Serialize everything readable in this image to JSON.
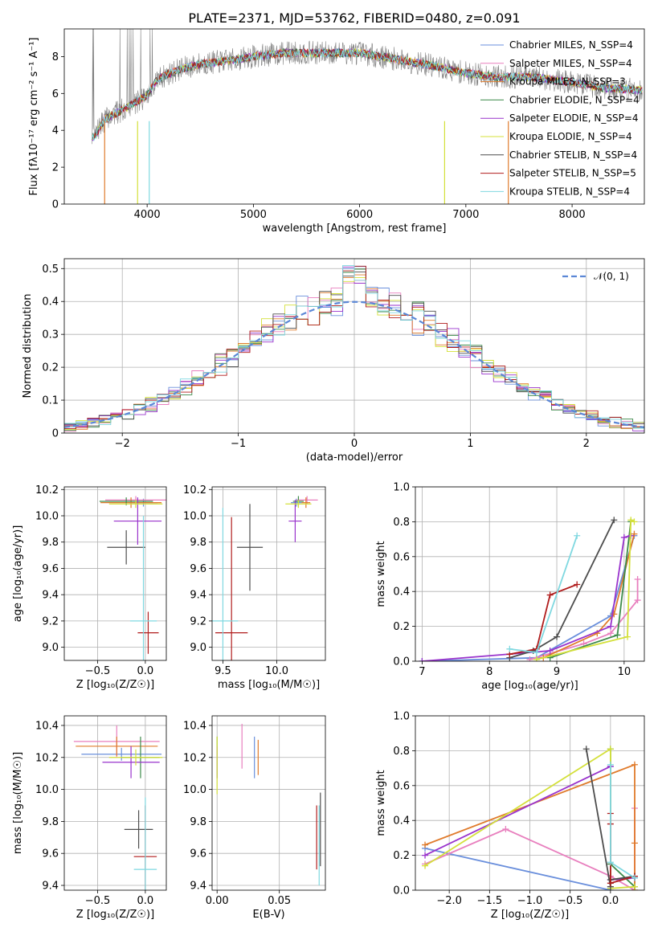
{
  "chart_data": [
    {
      "id": "spectrum",
      "type": "line",
      "title": "PLATE=2371, MJD=53762, FIBERID=0480, z=0.091",
      "xlabel": "wavelength [Angstrom, rest frame]",
      "ylabel": "Flux [fλ10⁻¹⁷ erg cm⁻² s⁻¹ A⁻¹]",
      "xlim": [
        3220,
        8680
      ],
      "ylim": [
        0,
        9.5
      ],
      "xticks": [
        4000,
        5000,
        6000,
        7000,
        8000
      ],
      "yticks": [
        0,
        2,
        4,
        6,
        8
      ],
      "grid": false,
      "legend_position": "top-right",
      "data_color": "#808080",
      "observed_anchor_x": [
        3500,
        3600,
        3800,
        4000,
        4100,
        4300,
        4500,
        4800,
        5000,
        5300,
        5600,
        6000,
        6300,
        6600,
        7000,
        7300,
        7600,
        8000,
        8300,
        8600
      ],
      "observed_anchor_y": [
        3.6,
        4.6,
        5.2,
        5.9,
        6.8,
        7.3,
        7.6,
        7.8,
        8.0,
        8.2,
        8.2,
        8.2,
        7.9,
        7.6,
        7.1,
        6.9,
        6.9,
        6.6,
        6.3,
        6.2
      ],
      "series": [
        {
          "name": "Chabrier MILES, N_SSP=4",
          "color": "#6a8fdc"
        },
        {
          "name": "Salpeter MILES, N_SSP=4",
          "color": "#e87fbe"
        },
        {
          "name": "Kroupa MILES, N_SSP=3",
          "color": "#e07b2c"
        },
        {
          "name": "Chabrier ELODIE, N_SSP=4",
          "color": "#3c8a4a"
        },
        {
          "name": "Salpeter ELODIE, N_SSP=4",
          "color": "#9933cc"
        },
        {
          "name": "Kroupa ELODIE, N_SSP=4",
          "color": "#d4e03a"
        },
        {
          "name": "Chabrier STELIB, N_SSP=4",
          "color": "#4d4d4d"
        },
        {
          "name": "Salpeter STELIB, N_SSP=5",
          "color": "#b01c1c"
        },
        {
          "name": "Kroupa STELIB, N_SSP=4",
          "color": "#7fd8e0"
        }
      ]
    },
    {
      "id": "residuals",
      "type": "histogram",
      "xlabel": "(data-model)/error",
      "ylabel": "Normed distribution",
      "xlim": [
        -2.5,
        2.5
      ],
      "ylim": [
        0,
        0.53
      ],
      "xticks": [
        -2,
        -1,
        0,
        1,
        2
      ],
      "yticks": [
        0.0,
        0.1,
        0.2,
        0.3,
        0.4,
        0.5
      ],
      "grid": true,
      "bin_width": 0.1,
      "legend_position": "top-right",
      "reference_curve": {
        "name": "N(0,1)",
        "label_text": "𝒩(0, 1)",
        "color": "#5b87d6"
      }
    },
    {
      "id": "age-vs-Z",
      "type": "errorbar",
      "xlabel": "Z [log₁₀(Z/Z☉)]",
      "ylabel": "age  [log₁₀(age/yr)]",
      "xlim": [
        -0.85,
        0.22
      ],
      "ylim": [
        8.9,
        10.22
      ],
      "xticks": [
        -0.5,
        0.0
      ],
      "xtick_labels": [
        "−0.5",
        "0.0"
      ],
      "yticks": [
        9.0,
        9.2,
        9.4,
        9.6,
        9.8,
        10.0,
        10.2
      ],
      "grid": true,
      "points": [
        {
          "color": "#6a8fdc",
          "x": -0.02,
          "xerr": 0.15,
          "y": 10.1,
          "yerr": 0.03
        },
        {
          "color": "#e87fbe",
          "x": -0.1,
          "xerr": 0.32,
          "y": 10.12,
          "yerr": 0.03
        },
        {
          "color": "#e07b2c",
          "x": -0.15,
          "xerr": 0.32,
          "y": 10.1,
          "yerr": 0.04
        },
        {
          "color": "#3c8a4a",
          "x": -0.2,
          "xerr": 0.28,
          "y": 10.11,
          "yerr": 0.03
        },
        {
          "color": "#9933cc",
          "x": -0.08,
          "xerr": 0.25,
          "y": 9.96,
          "yerr": 0.18
        },
        {
          "color": "#d4e03a",
          "x": -0.1,
          "xerr": 0.28,
          "y": 10.09,
          "yerr": 0.03
        },
        {
          "color": "#4d4d4d",
          "x": -0.2,
          "xerr": 0.2,
          "y": 9.76,
          "yerr": 0.13
        },
        {
          "color": "#b01c1c",
          "x": 0.03,
          "xerr": 0.11,
          "y": 9.11,
          "yerr": 0.16
        },
        {
          "color": "#7fd8e0",
          "x": -0.02,
          "xerr": 0.14,
          "y": 9.2,
          "yerr": 0.8
        }
      ]
    },
    {
      "id": "age-vs-mass",
      "type": "errorbar",
      "xlabel": "mass [log₁₀(M/M☉)]",
      "xlim": [
        9.4,
        10.45
      ],
      "ylim": [
        8.9,
        10.22
      ],
      "xticks": [
        9.5,
        10.0
      ],
      "xtick_labels": [
        "9.5",
        "10.0"
      ],
      "yticks": [
        9.0,
        9.2,
        9.4,
        9.6,
        9.8,
        10.0,
        10.2
      ],
      "grid": true,
      "points": [
        {
          "color": "#6a8fdc",
          "x": 10.18,
          "xerr": 0.05,
          "y": 10.1,
          "yerr": 0.03
        },
        {
          "color": "#e87fbe",
          "x": 10.28,
          "xerr": 0.1,
          "y": 10.12,
          "yerr": 0.03
        },
        {
          "color": "#e07b2c",
          "x": 10.27,
          "xerr": 0.04,
          "y": 10.1,
          "yerr": 0.04
        },
        {
          "color": "#3c8a4a",
          "x": 10.2,
          "xerr": 0.05,
          "y": 10.11,
          "yerr": 0.04
        },
        {
          "color": "#9933cc",
          "x": 10.17,
          "xerr": 0.06,
          "y": 9.96,
          "yerr": 0.16
        },
        {
          "color": "#d4e03a",
          "x": 10.2,
          "xerr": 0.12,
          "y": 10.09,
          "yerr": 0.03
        },
        {
          "color": "#4d4d4d",
          "x": 9.75,
          "xerr": 0.12,
          "y": 9.76,
          "yerr": 0.33
        },
        {
          "color": "#b01c1c",
          "x": 9.58,
          "xerr": 0.15,
          "y": 9.11,
          "yerr": 0.88
        },
        {
          "color": "#7fd8e0",
          "x": 9.5,
          "xerr": 0.14,
          "y": 9.2,
          "yerr": 0.86
        }
      ]
    },
    {
      "id": "mass-weight-vs-age",
      "type": "line",
      "xlabel": "age  [log₁₀(age/yr)]",
      "ylabel": "mass weight",
      "xlim": [
        6.9,
        10.3
      ],
      "ylim": [
        0,
        1.0
      ],
      "xticks": [
        7,
        8,
        9,
        10
      ],
      "yticks": [
        0.0,
        0.2,
        0.4,
        0.6,
        0.8,
        1.0
      ],
      "grid": true,
      "series": [
        {
          "color": "#6a8fdc",
          "x": [
            7.0,
            8.7,
            9.8,
            10.15
          ],
          "y": [
            0.0,
            0.02,
            0.26,
            0.72
          ]
        },
        {
          "color": "#e87fbe",
          "x": [
            8.6,
            9.4,
            9.8,
            10.2,
            10.2
          ],
          "y": [
            0.01,
            0.1,
            0.16,
            0.35,
            0.47
          ]
        },
        {
          "color": "#e07b2c",
          "x": [
            8.8,
            9.6,
            9.85,
            10.15
          ],
          "y": [
            0.02,
            0.16,
            0.27,
            0.73
          ]
        },
        {
          "color": "#3c8a4a",
          "x": [
            8.9,
            9.9,
            10.1
          ],
          "y": [
            0.02,
            0.15,
            0.8
          ]
        },
        {
          "color": "#9933cc",
          "x": [
            7.0,
            8.9,
            9.8,
            10.0,
            10.1
          ],
          "y": [
            0.0,
            0.06,
            0.2,
            0.71,
            0.72
          ]
        },
        {
          "color": "#d4e03a",
          "x": [
            8.7,
            10.05,
            10.1,
            10.15
          ],
          "y": [
            0.01,
            0.14,
            0.81,
            0.8
          ]
        },
        {
          "color": "#4d4d4d",
          "x": [
            8.3,
            8.65,
            9.0,
            9.85
          ],
          "y": [
            0.02,
            0.06,
            0.14,
            0.81
          ]
        },
        {
          "color": "#b01c1c",
          "x": [
            8.3,
            8.7,
            8.9,
            9.3
          ],
          "y": [
            0.04,
            0.07,
            0.38,
            0.44
          ]
        },
        {
          "color": "#7fd8e0",
          "x": [
            8.3,
            8.7,
            9.3
          ],
          "y": [
            0.07,
            0.05,
            0.72
          ]
        }
      ]
    },
    {
      "id": "mass-vs-Z",
      "type": "errorbar",
      "xlabel": "Z [log₁₀(Z/Z☉)]",
      "ylabel": "mass [log₁₀(M/M☉)]",
      "xlim": [
        -0.85,
        0.22
      ],
      "ylim": [
        9.37,
        10.46
      ],
      "xticks": [
        -0.5,
        0.0
      ],
      "xtick_labels": [
        "−0.5",
        "0.0"
      ],
      "yticks": [
        9.4,
        9.6,
        9.8,
        10.0,
        10.2,
        10.4
      ],
      "grid": true,
      "points": [
        {
          "color": "#6a8fdc",
          "x": -0.25,
          "xerr": 0.42,
          "y": 10.22,
          "yerr": 0.04
        },
        {
          "color": "#e87fbe",
          "x": -0.3,
          "xerr": 0.45,
          "y": 10.3,
          "yerr": 0.1
        },
        {
          "color": "#e07b2c",
          "x": -0.3,
          "xerr": 0.43,
          "y": 10.27,
          "yerr": 0.06
        },
        {
          "color": "#3c8a4a",
          "x": -0.05,
          "xerr": 0.2,
          "y": 10.2,
          "yerr": 0.13
        },
        {
          "color": "#9933cc",
          "x": -0.15,
          "xerr": 0.3,
          "y": 10.17,
          "yerr": 0.1
        },
        {
          "color": "#d4e03a",
          "x": -0.1,
          "xerr": 0.28,
          "y": 10.2,
          "yerr": 0.05
        },
        {
          "color": "#4d4d4d",
          "x": -0.07,
          "xerr": 0.15,
          "y": 9.75,
          "yerr": 0.12
        },
        {
          "color": "#b01c1c",
          "x": 0.0,
          "xerr": 0.12,
          "y": 9.58,
          "yerr": 0.32
        },
        {
          "color": "#7fd8e0",
          "x": 0.0,
          "xerr": 0.12,
          "y": 9.5,
          "yerr": 0.45
        }
      ]
    },
    {
      "id": "mass-vs-ebv",
      "type": "errorbar",
      "xlabel": "E(B-V)",
      "xlim": [
        -0.004,
        0.087
      ],
      "ylim": [
        9.37,
        10.46
      ],
      "xticks": [
        0.0,
        0.05
      ],
      "xtick_labels": [
        "0.00",
        "0.05"
      ],
      "yticks": [
        9.4,
        9.6,
        9.8,
        10.0,
        10.2,
        10.4
      ],
      "grid": true,
      "points": [
        {
          "color": "#6a8fdc",
          "x": 0.03,
          "xerr": 0.0,
          "y": 10.2,
          "yerr": 0.13
        },
        {
          "color": "#e87fbe",
          "x": 0.02,
          "xerr": 0.0,
          "y": 10.27,
          "yerr": 0.14
        },
        {
          "color": "#e07b2c",
          "x": 0.033,
          "xerr": 0.0,
          "y": 10.2,
          "yerr": 0.11
        },
        {
          "color": "#3c8a4a",
          "x": 0.0,
          "xerr": 0.0,
          "y": 10.2,
          "yerr": 0.13
        },
        {
          "color": "#9933cc",
          "x": 0.0,
          "xerr": 0.0,
          "y": 10.17,
          "yerr": 0.1
        },
        {
          "color": "#d4e03a",
          "x": 0.0,
          "xerr": 0.0,
          "y": 10.15,
          "yerr": 0.18
        },
        {
          "color": "#4d4d4d",
          "x": 0.083,
          "xerr": 0.0,
          "y": 9.75,
          "yerr": 0.23
        },
        {
          "color": "#b01c1c",
          "x": 0.08,
          "xerr": 0.0,
          "y": 9.7,
          "yerr": 0.2
        },
        {
          "color": "#7fd8e0",
          "x": 0.082,
          "xerr": 0.0,
          "y": 9.65,
          "yerr": 0.25
        }
      ]
    },
    {
      "id": "mass-weight-vs-Z",
      "type": "line",
      "xlabel": "Z [log₁₀(Z/Z☉)]",
      "ylabel": "mass weight",
      "xlim": [
        -2.42,
        0.42
      ],
      "ylim": [
        0,
        1.0
      ],
      "xticks": [
        -2.0,
        -1.5,
        -1.0,
        -0.5,
        0.0
      ],
      "xtick_labels": [
        "−2.0",
        "−1.5",
        "−1.0",
        "−0.5",
        "0.0"
      ],
      "yticks": [
        0.0,
        0.2,
        0.4,
        0.6,
        0.8,
        1.0
      ],
      "grid": true,
      "series": [
        {
          "color": "#6a8fdc",
          "x": [
            -2.3,
            0.0,
            0.0,
            0.0
          ],
          "y": [
            0.24,
            0.0,
            0.02,
            0.71
          ]
        },
        {
          "color": "#e87fbe",
          "x": [
            -2.3,
            -1.3,
            0.0,
            0.3,
            0.3
          ],
          "y": [
            0.15,
            0.35,
            0.08,
            0.0,
            0.47
          ]
        },
        {
          "color": "#e07b2c",
          "x": [
            -2.3,
            0.3,
            0.3,
            0.3
          ],
          "y": [
            0.26,
            0.72,
            0.27,
            0.0
          ]
        },
        {
          "color": "#3c8a4a",
          "x": [
            0.0,
            0.0,
            0.3
          ],
          "y": [
            0.81,
            0.15,
            0.02
          ]
        },
        {
          "color": "#9933cc",
          "x": [
            -2.3,
            0.0,
            0.0,
            0.3
          ],
          "y": [
            0.2,
            0.71,
            0.06,
            0.07
          ]
        },
        {
          "color": "#d4e03a",
          "x": [
            -2.3,
            0.0,
            0.0,
            0.3
          ],
          "y": [
            0.14,
            0.81,
            0.01,
            0.02
          ]
        },
        {
          "color": "#4d4d4d",
          "x": [
            -0.3,
            0.0,
            0.0,
            0.3
          ],
          "y": [
            0.81,
            0.02,
            0.06,
            0.08
          ]
        },
        {
          "color": "#b01c1c",
          "x": [
            0.0,
            0.0,
            0.0,
            0.3
          ],
          "y": [
            0.44,
            0.38,
            0.04,
            0.08
          ]
        },
        {
          "color": "#7fd8e0",
          "x": [
            0.0,
            0.0,
            0.3
          ],
          "y": [
            0.72,
            0.16,
            0.07
          ]
        }
      ]
    }
  ]
}
